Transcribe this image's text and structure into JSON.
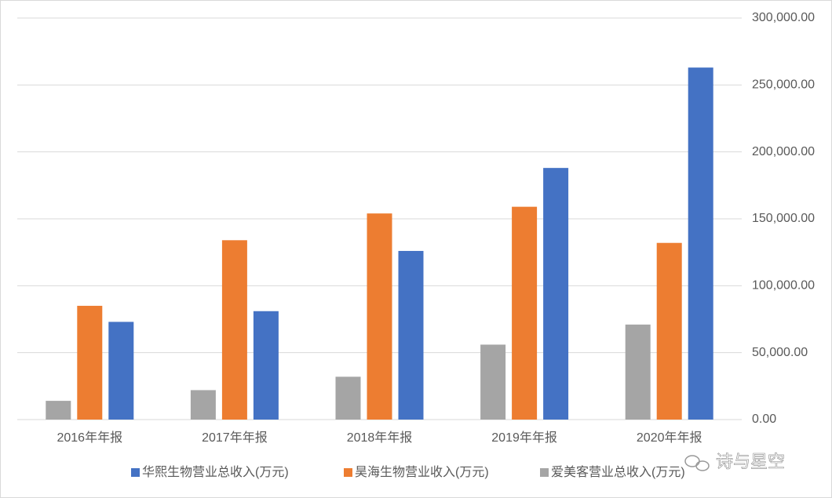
{
  "chart_data": {
    "type": "bar",
    "categories": [
      "2016年年报",
      "2017年年报",
      "2018年年报",
      "2019年年报",
      "2020年年报"
    ],
    "series": [
      {
        "name": "爱美客营业总收入(万元)",
        "color": "#a5a5a5",
        "values": [
          14000,
          22000,
          32000,
          56000,
          71000
        ]
      },
      {
        "name": "昊海生物营业收入(万元)",
        "color": "#ed7d31",
        "values": [
          85000,
          134000,
          154000,
          159000,
          132000
        ]
      },
      {
        "name": "华熙生物营业总收入(万元)",
        "color": "#4472c4",
        "values": [
          73000,
          81000,
          126000,
          188000,
          263000
        ]
      }
    ],
    "legend_order": [
      2,
      1,
      0
    ],
    "ylim": [
      0,
      300000
    ],
    "yticks": [
      {
        "value": 0,
        "label": "0.00"
      },
      {
        "value": 50000,
        "label": "50,000.00"
      },
      {
        "value": 100000,
        "label": "100,000.00"
      },
      {
        "value": 150000,
        "label": "150,000.00"
      },
      {
        "value": 200000,
        "label": "200,000.00"
      },
      {
        "value": 250000,
        "label": "250,000.00"
      },
      {
        "value": 300000,
        "label": "300,000.00"
      }
    ],
    "grid": true,
    "y_axis_side": "right",
    "legend": "bottom",
    "watermark": "诗与星空"
  }
}
